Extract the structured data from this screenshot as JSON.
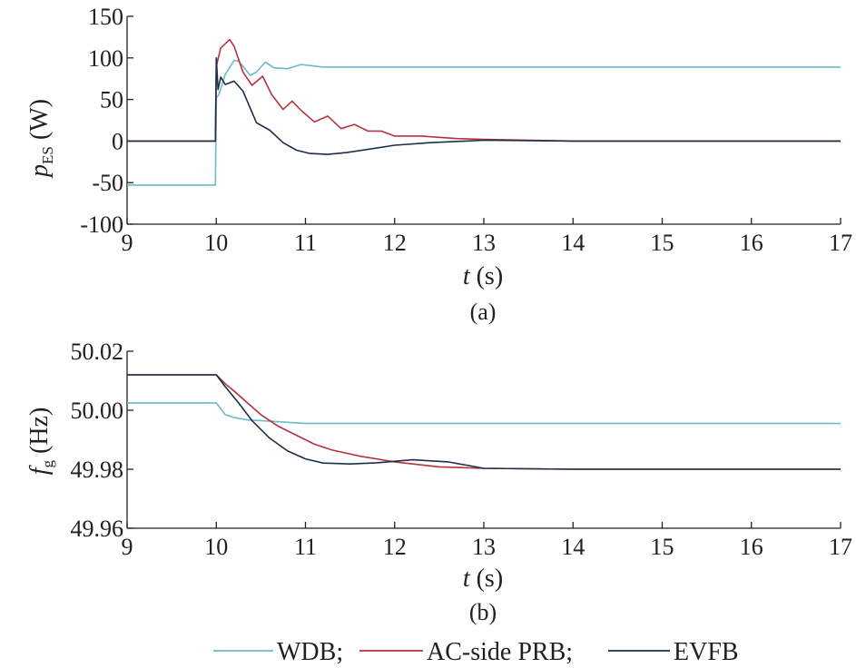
{
  "chart_data": [
    {
      "id": "a",
      "type": "line",
      "caption": "(a)",
      "ylabel_main": "p",
      "ylabel_sub": "ES",
      "ylabel_unit": " (W)",
      "xlabel_main": "t",
      "xlabel_unit": " (s)",
      "xlim": [
        9,
        17
      ],
      "ylim": [
        -100,
        150
      ],
      "xticks": [
        9,
        10,
        11,
        12,
        13,
        14,
        15,
        16,
        17
      ],
      "yticks": [
        -100,
        -50,
        0,
        50,
        100,
        150
      ],
      "ytick_labels": [
        "-100",
        "-50",
        "0",
        "50",
        "100",
        "150"
      ],
      "series": [
        {
          "name": "WDB",
          "color": "#6cb9c8",
          "x": [
            9,
            9.5,
            9.99,
            10.0,
            10.03,
            10.1,
            10.2,
            10.25,
            10.3,
            10.38,
            10.45,
            10.55,
            10.65,
            10.8,
            10.95,
            11.2,
            12,
            13,
            14,
            15,
            16,
            17
          ],
          "y": [
            -53,
            -53,
            -53,
            52,
            56,
            80,
            97,
            96,
            90,
            79,
            83,
            95,
            88,
            87,
            92,
            89,
            89,
            89,
            89,
            89,
            89,
            89
          ]
        },
        {
          "name": "AC-side PRB",
          "color": "#b5323e",
          "x": [
            9,
            9.5,
            9.99,
            10.0,
            10.05,
            10.15,
            10.2,
            10.3,
            10.4,
            10.52,
            10.62,
            10.75,
            10.85,
            10.95,
            11.1,
            11.25,
            11.4,
            11.55,
            11.7,
            11.85,
            12.0,
            12.3,
            12.7,
            13.0,
            14,
            15,
            16,
            17
          ],
          "y": [
            0,
            0,
            0,
            90,
            112,
            122,
            114,
            83,
            67,
            78,
            56,
            38,
            48,
            37,
            23,
            30,
            15,
            20,
            12,
            12,
            6,
            6,
            3,
            2,
            0,
            0,
            0,
            0
          ]
        },
        {
          "name": "EVFB",
          "color": "#1d2e4a",
          "x": [
            9,
            9.5,
            9.99,
            10.0,
            10.02,
            10.05,
            10.1,
            10.2,
            10.3,
            10.45,
            10.6,
            10.75,
            10.9,
            11.05,
            11.25,
            11.45,
            11.7,
            12.0,
            12.4,
            12.8,
            13.0,
            14,
            15,
            16,
            17
          ],
          "y": [
            0,
            0,
            0,
            100,
            62,
            77,
            68,
            72,
            60,
            22,
            13,
            -2,
            -11,
            -15,
            -16,
            -14,
            -10,
            -5,
            -2,
            0,
            1,
            0,
            0,
            0,
            0
          ]
        }
      ]
    },
    {
      "id": "b",
      "type": "line",
      "caption": "(b)",
      "ylabel_main": "f",
      "ylabel_sub": "g",
      "ylabel_unit": " (Hz)",
      "xlabel_main": "t",
      "xlabel_unit": " (s)",
      "xlim": [
        9,
        17
      ],
      "ylim": [
        49.96,
        50.02
      ],
      "xticks": [
        9,
        10,
        11,
        12,
        13,
        14,
        15,
        16,
        17
      ],
      "yticks": [
        49.96,
        49.98,
        50.0,
        50.02
      ],
      "ytick_labels": [
        "49.96",
        "49.98",
        "50.00",
        "50.02"
      ],
      "series": [
        {
          "name": "WDB",
          "color": "#6cb9c8",
          "x": [
            9,
            10,
            10.05,
            10.1,
            10.2,
            10.35,
            10.5,
            11,
            12,
            13,
            14,
            15,
            16,
            17
          ],
          "y": [
            50.0025,
            50.0025,
            50.0005,
            49.9985,
            49.9975,
            49.9967,
            49.9965,
            49.9955,
            49.9955,
            49.9955,
            49.9955,
            49.9955,
            49.9955,
            49.9955
          ]
        },
        {
          "name": "AC-side PRB",
          "color": "#b5323e",
          "x": [
            9,
            10,
            10.1,
            10.2,
            10.35,
            10.5,
            10.7,
            10.9,
            11.1,
            11.3,
            11.6,
            12.0,
            12.5,
            13.0,
            14,
            15,
            16,
            17
          ],
          "y": [
            50.012,
            50.012,
            50.009,
            50.0065,
            50.0025,
            49.9985,
            49.9945,
            49.9915,
            49.9885,
            49.9865,
            49.9845,
            49.9825,
            49.9808,
            49.9803,
            49.98,
            49.98,
            49.98,
            49.98
          ]
        },
        {
          "name": "EVFB",
          "color": "#1d2e4a",
          "x": [
            9,
            10,
            10.1,
            10.25,
            10.4,
            10.6,
            10.8,
            11.0,
            11.2,
            11.5,
            11.8,
            12.2,
            12.6,
            13.0,
            14,
            15,
            16,
            17
          ],
          "y": [
            50.012,
            50.012,
            50.008,
            50.0025,
            49.9965,
            49.9905,
            49.9862,
            49.9835,
            49.9821,
            49.9818,
            49.9822,
            49.9832,
            49.9825,
            49.9803,
            49.98,
            49.98,
            49.98,
            49.98
          ]
        }
      ]
    }
  ],
  "legend": {
    "items": [
      {
        "label": "WDB;",
        "color": "#6cb9c8"
      },
      {
        "label": "AC-side PRB;",
        "color": "#b5323e"
      },
      {
        "label": "EVFB",
        "color": "#1d2e4a"
      }
    ]
  }
}
